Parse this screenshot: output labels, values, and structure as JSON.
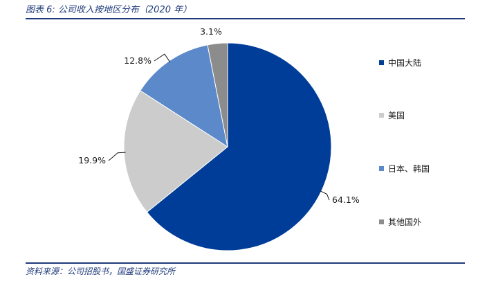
{
  "figure": {
    "title": "图表 6:  公司收入按地区分布（2020 年）",
    "source": "资料来源：公司招股书，国盛证券研究所"
  },
  "chart_data": {
    "type": "pie",
    "title": "",
    "slices": [
      {
        "name": "中国大陆",
        "value": 64.1,
        "label": "64.1%",
        "color": "#003d99"
      },
      {
        "name": "美国",
        "value": 19.9,
        "label": "19.9%",
        "color": "#cccccc"
      },
      {
        "name": "日本、韩国",
        "value": 12.8,
        "label": "12.8%",
        "color": "#5b89c9"
      },
      {
        "name": "其他国外",
        "value": 3.1,
        "label": "3.1%",
        "color": "#8c8c8c"
      }
    ],
    "start_angle": "12 o'clock",
    "direction": "clockwise",
    "legend_position": "right"
  }
}
